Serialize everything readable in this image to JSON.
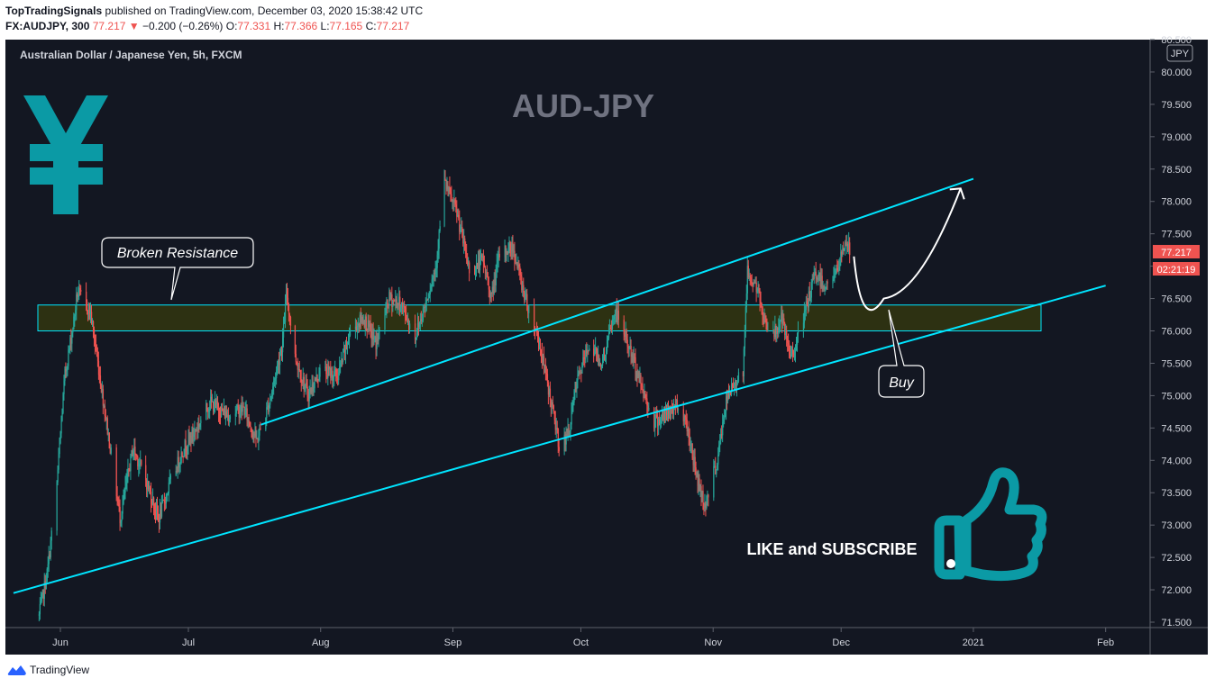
{
  "header": {
    "publisher": "TopTradingSignals",
    "published_text": "published on TradingView.com, December 03, 2020 15:38:42 UTC",
    "symbol": "FX:AUDJPY, 300",
    "last": "77.217",
    "change_arrow": "▼",
    "change": "−0.200 (−0.26%)",
    "o_label": "O:",
    "o": "77.331",
    "h_label": "H:",
    "h": "77.366",
    "l_label": "L:",
    "l": "77.165",
    "c_label": "C:",
    "c": "77.217"
  },
  "chart_title": "Australian Dollar / Japanese Yen, 5h, FXCM",
  "watermark": "AUD-JPY",
  "currency_badge": "JPY",
  "last_price_label": "77.217",
  "countdown_label": "02:21:19",
  "annotations": {
    "broken_resistance": "Broken Resistance",
    "buy": "Buy",
    "like_subscribe": "LIKE and SUBSCRIBE"
  },
  "footer": {
    "brand": "TradingView"
  },
  "colors": {
    "background": "#131722",
    "up": "#26a69a",
    "down": "#ef5350",
    "trendline": "#00e5ff",
    "zone_fill": "#2e3312",
    "yen_icon": "#0b9aa5",
    "thumb_icon": "#0b9aa5"
  },
  "icons": [
    "yen-icon",
    "thumbs-up-icon",
    "tradingview-logo-icon",
    "down-triangle-icon"
  ],
  "chart_data": {
    "type": "candlestick",
    "title": "Australian Dollar / Japanese Yen, 5h, FXCM",
    "y_axis": {
      "min": 71.5,
      "max": 80.5,
      "unit": "JPY",
      "side": "right",
      "tick_labels": [
        "71.500",
        "72.000",
        "72.500",
        "73.000",
        "73.500",
        "74.000",
        "74.500",
        "75.000",
        "75.500",
        "76.000",
        "76.500",
        "77.000",
        "77.500",
        "78.000",
        "78.500",
        "79.000",
        "79.500",
        "80.000",
        "80.500"
      ]
    },
    "x_axis": {
      "tick_labels": [
        "Jun",
        "Jul",
        "Aug",
        "Sep",
        "Oct",
        "Nov",
        "Dec",
        "2021",
        "Feb"
      ],
      "ticks": [
        {
          "label": "Jun",
          "date": "2020-06-01"
        },
        {
          "label": "Jul",
          "date": "2020-07-01"
        },
        {
          "label": "Aug",
          "date": "2020-08-01"
        },
        {
          "label": "Sep",
          "date": "2020-09-01"
        },
        {
          "label": "Oct",
          "date": "2020-10-01"
        },
        {
          "label": "Nov",
          "date": "2020-11-01"
        },
        {
          "label": "Dec",
          "date": "2020-12-01"
        },
        {
          "label": "2021",
          "date": "2021-01-01"
        },
        {
          "label": "Feb",
          "date": "2021-02-01"
        }
      ]
    },
    "price_path": [
      {
        "date": "2020-05-27",
        "price": 71.6
      },
      {
        "date": "2020-05-29",
        "price": 72.3
      },
      {
        "date": "2020-05-31",
        "price": 73.5
      },
      {
        "date": "2020-06-02",
        "price": 75.3
      },
      {
        "date": "2020-06-04",
        "price": 76.1
      },
      {
        "date": "2020-06-05",
        "price": 76.6
      },
      {
        "date": "2020-06-08",
        "price": 76.3
      },
      {
        "date": "2020-06-10",
        "price": 75.4
      },
      {
        "date": "2020-06-12",
        "price": 74.5
      },
      {
        "date": "2020-06-15",
        "price": 73.1
      },
      {
        "date": "2020-06-18",
        "price": 74.2
      },
      {
        "date": "2020-06-21",
        "price": 73.7
      },
      {
        "date": "2020-06-24",
        "price": 73.1
      },
      {
        "date": "2020-06-27",
        "price": 73.7
      },
      {
        "date": "2020-06-30",
        "price": 74.2
      },
      {
        "date": "2020-07-03",
        "price": 74.5
      },
      {
        "date": "2020-07-06",
        "price": 74.9
      },
      {
        "date": "2020-07-10",
        "price": 74.7
      },
      {
        "date": "2020-07-14",
        "price": 74.8
      },
      {
        "date": "2020-07-17",
        "price": 74.3
      },
      {
        "date": "2020-07-20",
        "price": 74.9
      },
      {
        "date": "2020-07-23",
        "price": 75.8
      },
      {
        "date": "2020-07-24",
        "price": 76.6
      },
      {
        "date": "2020-07-26",
        "price": 75.6
      },
      {
        "date": "2020-07-29",
        "price": 75.0
      },
      {
        "date": "2020-08-01",
        "price": 75.4
      },
      {
        "date": "2020-08-05",
        "price": 75.3
      },
      {
        "date": "2020-08-08",
        "price": 76.0
      },
      {
        "date": "2020-08-11",
        "price": 76.2
      },
      {
        "date": "2020-08-14",
        "price": 75.8
      },
      {
        "date": "2020-08-17",
        "price": 76.5
      },
      {
        "date": "2020-08-20",
        "price": 76.4
      },
      {
        "date": "2020-08-23",
        "price": 75.9
      },
      {
        "date": "2020-08-25",
        "price": 76.3
      },
      {
        "date": "2020-08-28",
        "price": 77.0
      },
      {
        "date": "2020-08-30",
        "price": 78.3
      },
      {
        "date": "2020-09-02",
        "price": 77.8
      },
      {
        "date": "2020-09-05",
        "price": 76.9
      },
      {
        "date": "2020-09-08",
        "price": 77.1
      },
      {
        "date": "2020-09-10",
        "price": 76.5
      },
      {
        "date": "2020-09-12",
        "price": 77.2
      },
      {
        "date": "2020-09-15",
        "price": 77.3
      },
      {
        "date": "2020-09-18",
        "price": 76.5
      },
      {
        "date": "2020-09-21",
        "price": 75.9
      },
      {
        "date": "2020-09-24",
        "price": 74.9
      },
      {
        "date": "2020-09-26",
        "price": 74.2
      },
      {
        "date": "2020-09-28",
        "price": 74.4
      },
      {
        "date": "2020-09-30",
        "price": 75.2
      },
      {
        "date": "2020-10-03",
        "price": 75.8
      },
      {
        "date": "2020-10-06",
        "price": 75.5
      },
      {
        "date": "2020-10-09",
        "price": 76.3
      },
      {
        "date": "2020-10-11",
        "price": 76.0
      },
      {
        "date": "2020-10-13",
        "price": 75.6
      },
      {
        "date": "2020-10-16",
        "price": 75.0
      },
      {
        "date": "2020-10-18",
        "price": 74.6
      },
      {
        "date": "2020-10-21",
        "price": 74.7
      },
      {
        "date": "2020-10-24",
        "price": 74.9
      },
      {
        "date": "2020-10-26",
        "price": 74.5
      },
      {
        "date": "2020-10-28",
        "price": 73.8
      },
      {
        "date": "2020-10-30",
        "price": 73.3
      },
      {
        "date": "2020-11-02",
        "price": 74.0
      },
      {
        "date": "2020-11-04",
        "price": 74.9
      },
      {
        "date": "2020-11-06",
        "price": 75.2
      },
      {
        "date": "2020-11-08",
        "price": 75.4
      },
      {
        "date": "2020-11-09",
        "price": 76.9
      },
      {
        "date": "2020-11-11",
        "price": 76.7
      },
      {
        "date": "2020-11-13",
        "price": 76.2
      },
      {
        "date": "2020-11-15",
        "price": 75.9
      },
      {
        "date": "2020-11-17",
        "price": 76.2
      },
      {
        "date": "2020-11-19",
        "price": 75.6
      },
      {
        "date": "2020-11-21",
        "price": 75.9
      },
      {
        "date": "2020-11-23",
        "price": 76.4
      },
      {
        "date": "2020-11-25",
        "price": 76.9
      },
      {
        "date": "2020-11-27",
        "price": 76.7
      },
      {
        "date": "2020-11-30",
        "price": 76.9
      },
      {
        "date": "2020-12-02",
        "price": 77.4
      },
      {
        "date": "2020-12-03",
        "price": 77.22
      }
    ],
    "drawings": {
      "resistance_zone": {
        "low": 76.0,
        "high": 76.4
      },
      "channel_upper": [
        {
          "date": "2020-07-18",
          "price": 74.55
        },
        {
          "date": "2021-01-01",
          "price": 78.35
        }
      ],
      "channel_lower": [
        {
          "date": "2020-05-21",
          "price": 71.95
        },
        {
          "date": "2021-02-01",
          "price": 76.7
        }
      ],
      "projection": [
        {
          "date": "2020-12-04",
          "price": 77.15
        },
        {
          "date": "2020-12-11",
          "price": 76.5
        },
        {
          "date": "2020-12-29",
          "price": 78.2
        }
      ]
    }
  }
}
